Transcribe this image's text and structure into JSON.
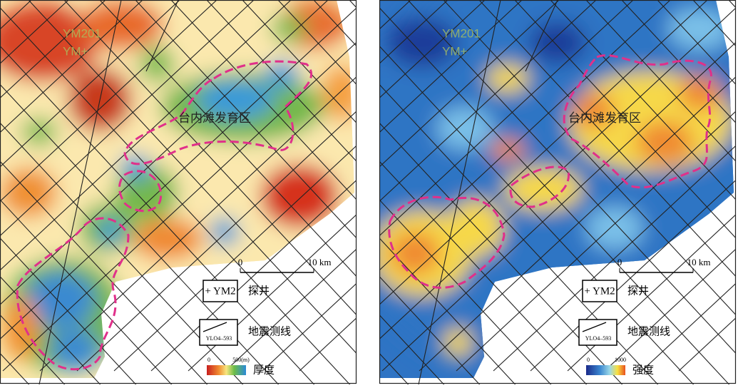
{
  "panels": [
    {
      "wells": [
        "YM201",
        "YM+"
      ],
      "zone_label": "台内滩发育区",
      "scale": [
        "0",
        "10 km"
      ],
      "legend": {
        "well": "+ YM2",
        "well_label": "探井",
        "line": "YLO4–593",
        "line_label": "地震测线",
        "colorbar_min": "0",
        "colorbar_max": "500(m)",
        "colorbar_label": "厚度"
      }
    },
    {
      "wells": [
        "YM201",
        "YM+"
      ],
      "zone_label": "台内滩发育区",
      "scale": [
        "0",
        "10 km"
      ],
      "legend": {
        "well": "+ YM2",
        "well_label": "探井",
        "line": "YLO4–593",
        "line_label": "地震测线",
        "colorbar_min": "0",
        "colorbar_max": "1000",
        "colorbar_label": "强度"
      }
    }
  ]
}
